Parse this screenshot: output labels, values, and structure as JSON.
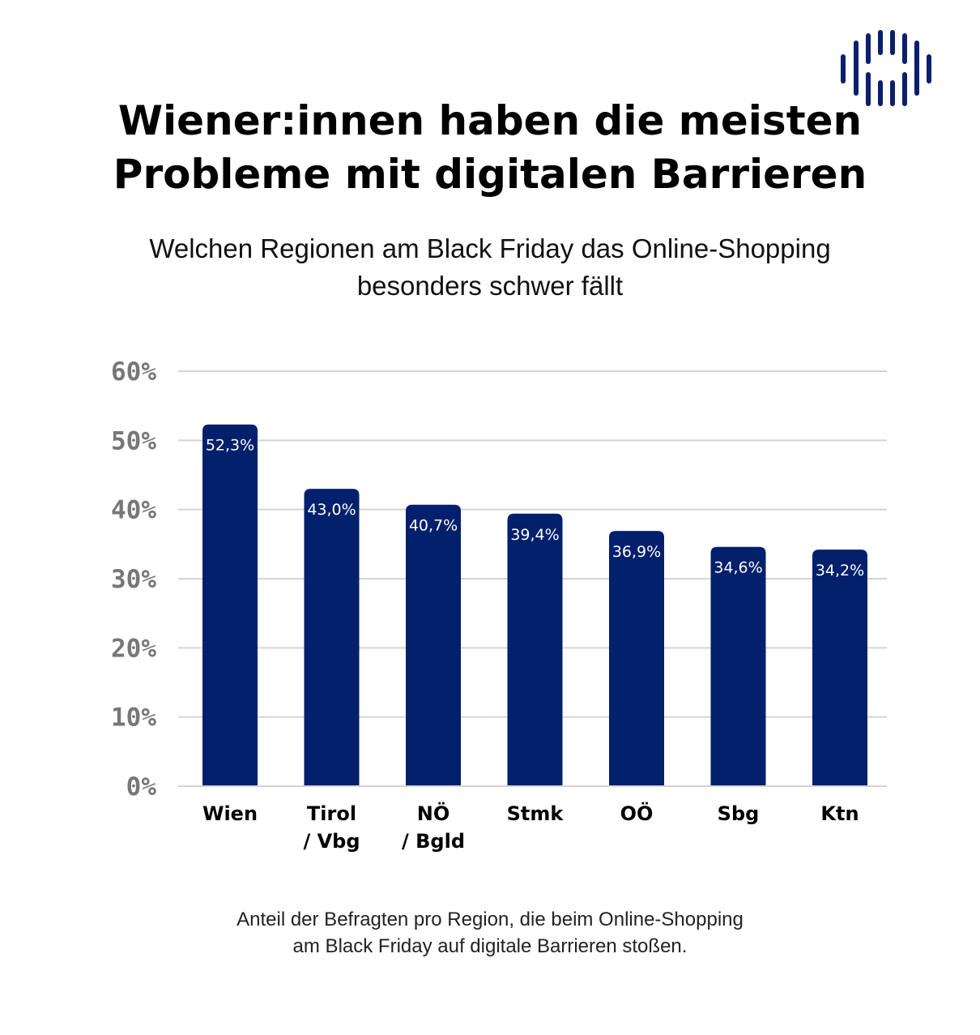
{
  "title_lines": [
    "Wiener:innen haben die meisten",
    "Probleme mit digitalen Barrieren"
  ],
  "subtitle_lines": [
    "Welchen Regionen am Black Friday das Online-Shopping",
    "besonders schwer fällt"
  ],
  "note_lines": [
    "Anteil der Befragten pro Region, die beim Online-Shopping",
    "am Black Friday auf digitale Barrieren stoßen."
  ],
  "logo": {
    "icon": "vertical-bars-logo",
    "color": "#0a1f6e"
  },
  "chart_data": {
    "type": "bar",
    "categories": [
      [
        "Wien"
      ],
      [
        "Tirol",
        "/ Vbg"
      ],
      [
        "NÖ",
        "/ Bgld"
      ],
      [
        "Stmk"
      ],
      [
        "OÖ"
      ],
      [
        "Sbg"
      ],
      [
        "Ktn"
      ]
    ],
    "values": [
      52.3,
      43.0,
      40.7,
      39.4,
      36.9,
      34.6,
      34.2
    ],
    "data_labels": [
      "52,3%",
      "43,0%",
      "40,7%",
      "39,4%",
      "36,9%",
      "34,6%",
      "34,2%"
    ],
    "yticks": [
      0,
      10,
      20,
      30,
      40,
      50,
      60
    ],
    "ytick_labels": [
      "0%",
      "10%",
      "20%",
      "30%",
      "40%",
      "50%",
      "60%"
    ],
    "ylim": [
      0,
      60
    ],
    "grid": true,
    "bar_color": "#02206b",
    "label_color": "#ffffff",
    "tick_color": "#777777",
    "grid_color": "#d4d4d4"
  }
}
